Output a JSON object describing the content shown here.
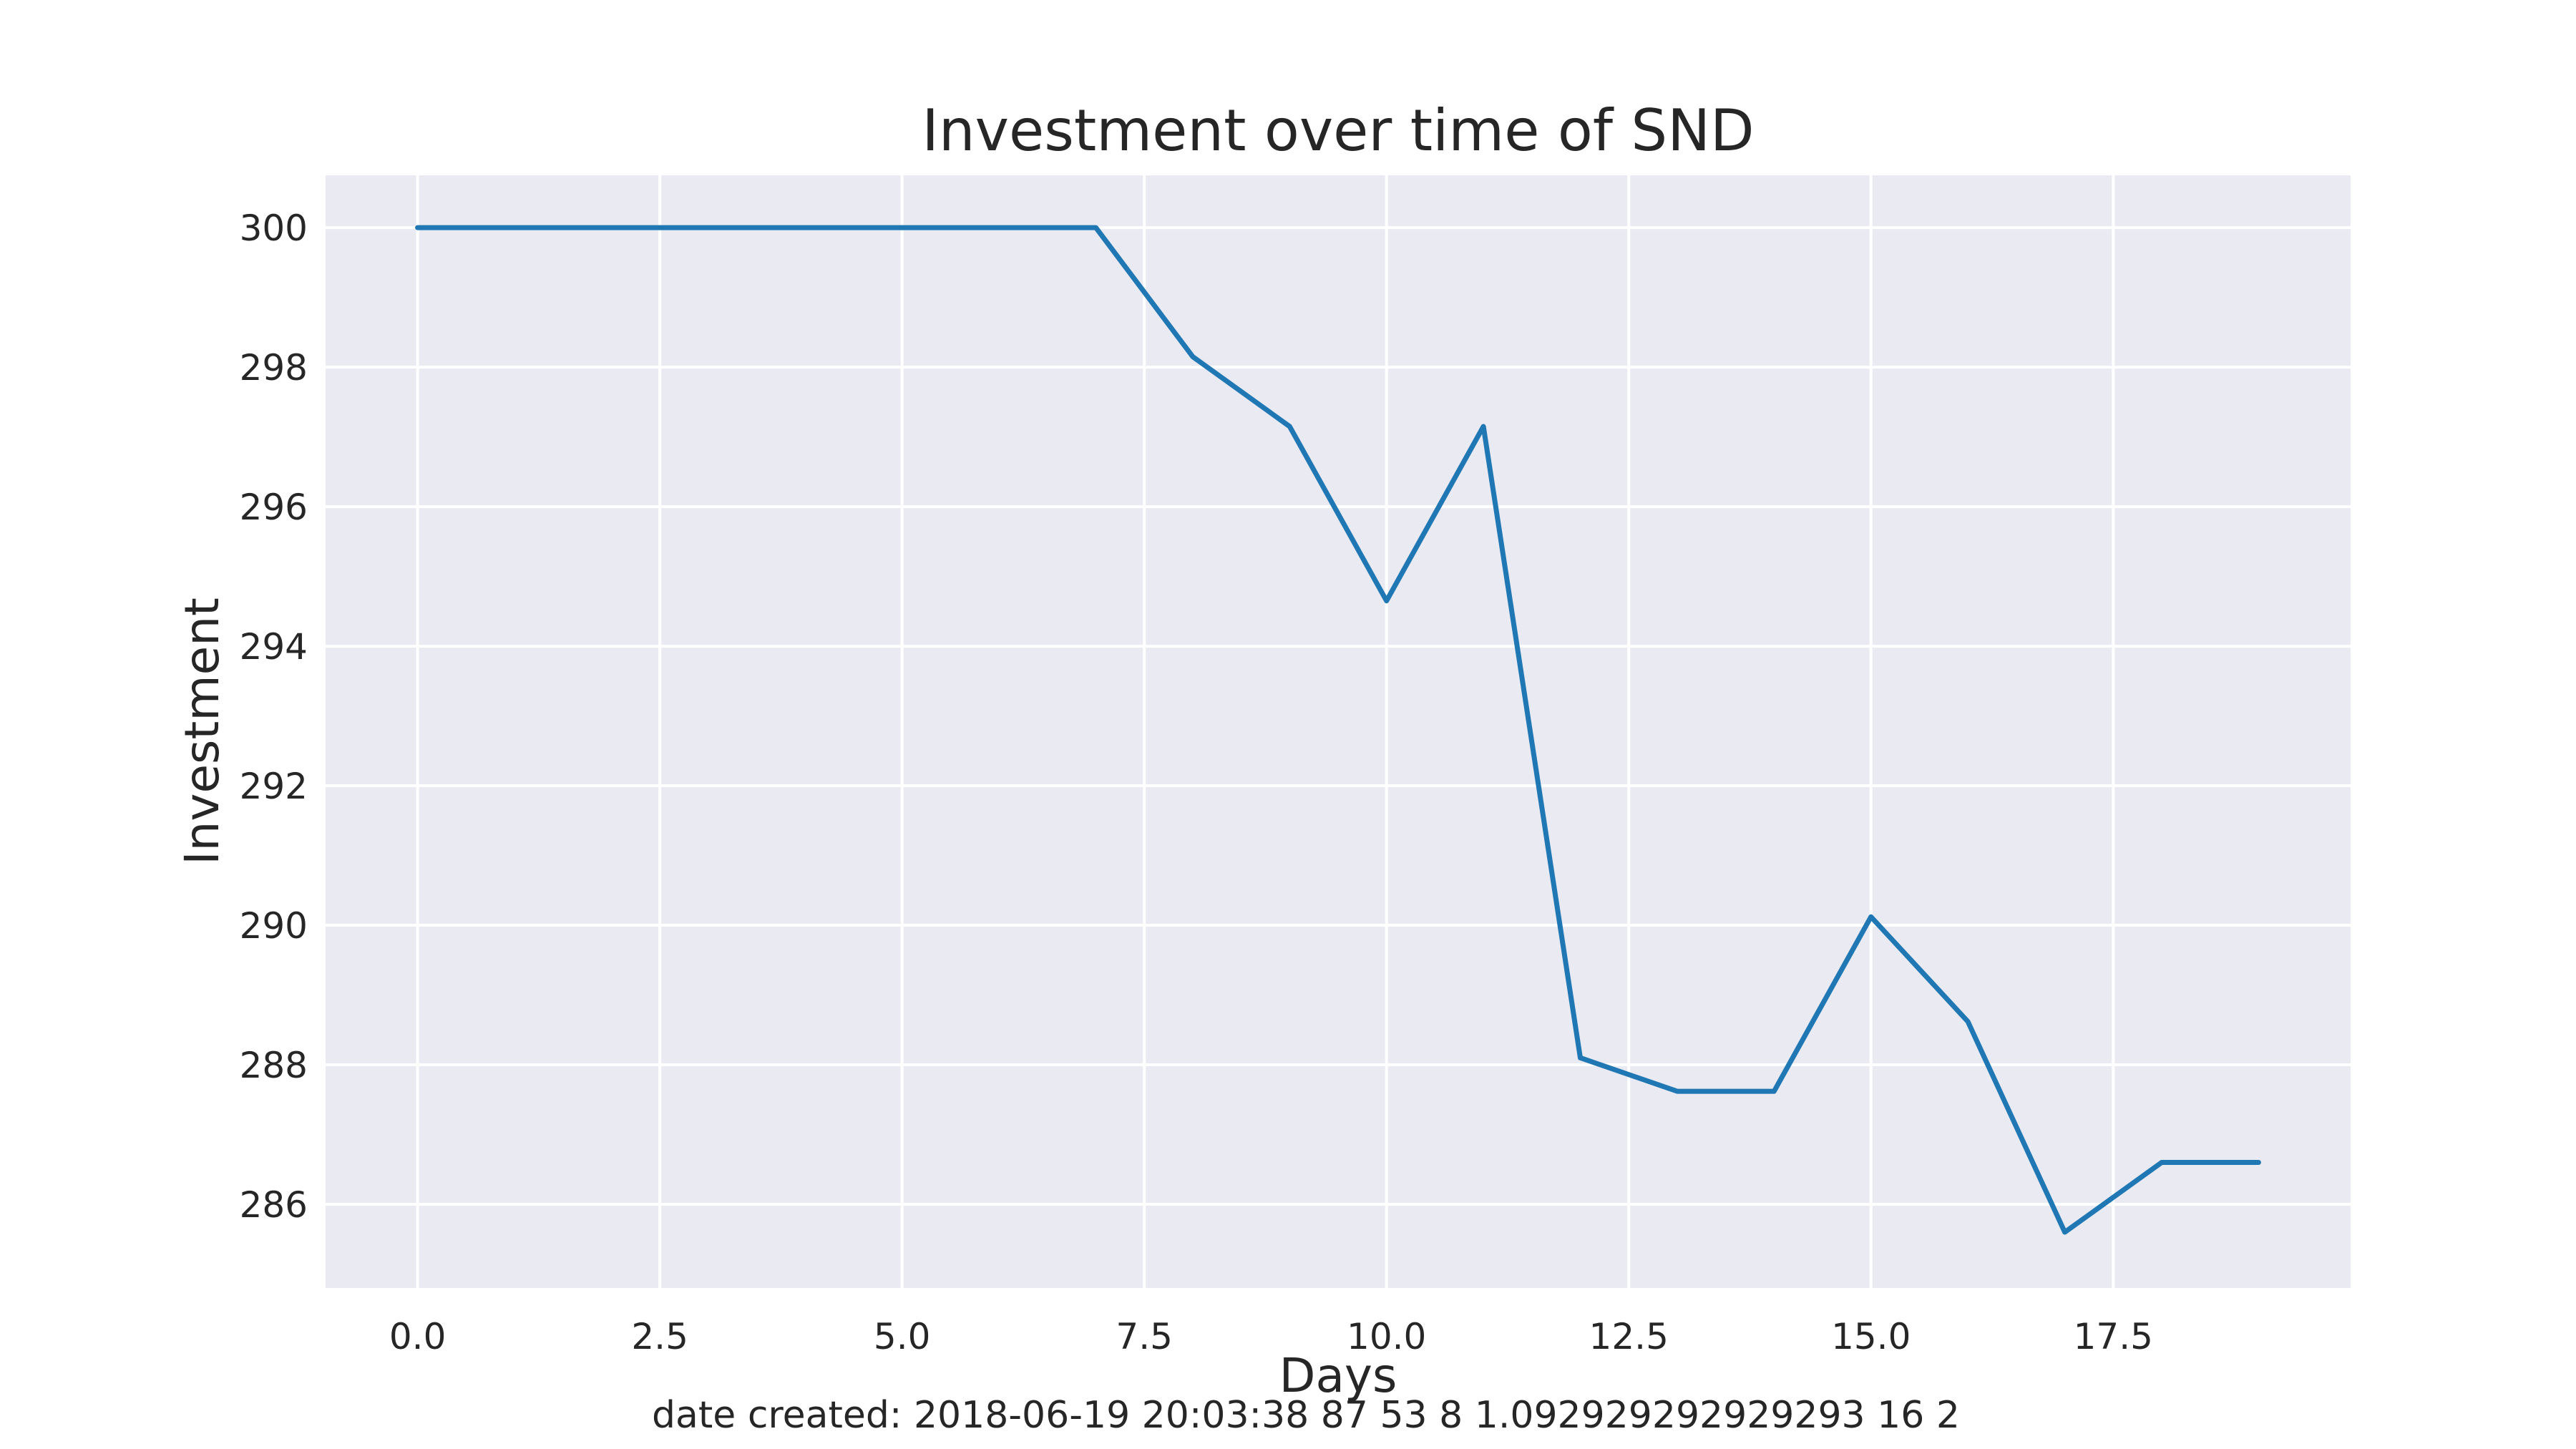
{
  "chart_data": {
    "type": "line",
    "title": "Investment over time of SND",
    "xlabel": "Days",
    "ylabel": "Investment",
    "xlim": [
      -0.95,
      19.95
    ],
    "ylim": [
      284.8,
      300.75
    ],
    "x_ticks": [
      0.0,
      2.5,
      5.0,
      7.5,
      10.0,
      12.5,
      15.0,
      17.5
    ],
    "x_tick_labels": [
      "0.0",
      "2.5",
      "5.0",
      "7.5",
      "10.0",
      "12.5",
      "15.0",
      "17.5"
    ],
    "y_ticks": [
      286,
      288,
      290,
      292,
      294,
      296,
      298,
      300
    ],
    "y_tick_labels": [
      "286",
      "288",
      "290",
      "292",
      "294",
      "296",
      "298",
      "300"
    ],
    "grid": true,
    "series": [
      {
        "color": "#1f77b4",
        "x": [
          0,
          1,
          2,
          3,
          4,
          5,
          6,
          7,
          8,
          9,
          10,
          11,
          12,
          13,
          14,
          15,
          16,
          17,
          18,
          19
        ],
        "y": [
          300,
          300,
          300,
          300,
          300,
          300,
          300,
          300,
          298.15,
          297.15,
          294.65,
          297.15,
          288.1,
          287.62,
          287.62,
          290.12,
          288.62,
          285.6,
          286.6,
          286.6
        ]
      }
    ]
  },
  "footer": "date created: 2018-06-19 20:03:38 87 53 8 1.092929292929293 16 2",
  "colors": {
    "plot_background": "#eaeaf2",
    "grid": "#ffffff",
    "text": "#262626"
  }
}
